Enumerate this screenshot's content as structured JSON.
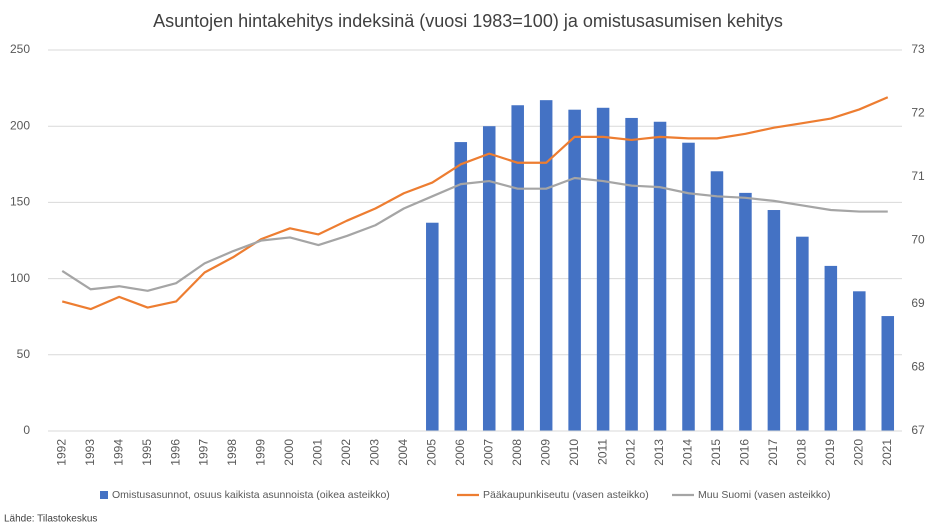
{
  "chart_data": {
    "type": "combo",
    "title": "Asuntojen hintakehitys indeksinä (vuosi 1983=100) ja omistusasumisen kehitys",
    "source": "Lähde: Tilastokeskus",
    "categories": [
      "1992",
      "1993",
      "1994",
      "1995",
      "1996",
      "1997",
      "1998",
      "1999",
      "2000",
      "2001",
      "2002",
      "2003",
      "2004",
      "2005",
      "2006",
      "2007",
      "2008",
      "2009",
      "2010",
      "2011",
      "2012",
      "2013",
      "2014",
      "2015",
      "2016",
      "2017",
      "2018",
      "2019",
      "2020",
      "2021"
    ],
    "ylim": [
      0,
      250
    ],
    "yticks": [
      0,
      50,
      100,
      150,
      200,
      250
    ],
    "y2lim": [
      67,
      73
    ],
    "y2ticks": [
      67,
      68,
      69,
      70,
      71,
      72,
      73
    ],
    "grid": true,
    "legend": "bottom",
    "series": [
      {
        "name": "Omistusasunnot, osuus kaikista asunnoista (oikea asteikko)",
        "type": "bar",
        "axis": "y2",
        "color": "#4472c4",
        "values": [
          null,
          null,
          null,
          null,
          null,
          null,
          null,
          null,
          null,
          null,
          null,
          null,
          null,
          70.28,
          71.55,
          71.8,
          72.13,
          72.21,
          72.06,
          72.09,
          71.93,
          71.87,
          71.54,
          71.09,
          70.75,
          70.48,
          70.06,
          69.6,
          69.2,
          68.81
        ]
      },
      {
        "name": "Pääkaupunkiseutu (vasen asteikko)",
        "type": "line",
        "color": "#ed7d31",
        "values": [
          85,
          80,
          88,
          81,
          85,
          104,
          114,
          126,
          133,
          129,
          138,
          146,
          156,
          163,
          175,
          182,
          176,
          176,
          193,
          193,
          191,
          193,
          192,
          192,
          195,
          199,
          202,
          205,
          211,
          219
        ]
      },
      {
        "name": "Muu Suomi (vasen asteikko)",
        "type": "line",
        "color": "#a5a5a5",
        "values": [
          105,
          93,
          95,
          92,
          97,
          110,
          118,
          125,
          127,
          122,
          128,
          135,
          146,
          154,
          162,
          164,
          159,
          159,
          166,
          164,
          161,
          160,
          156,
          154,
          153,
          151,
          148,
          145,
          144,
          144
        ]
      }
    ]
  }
}
